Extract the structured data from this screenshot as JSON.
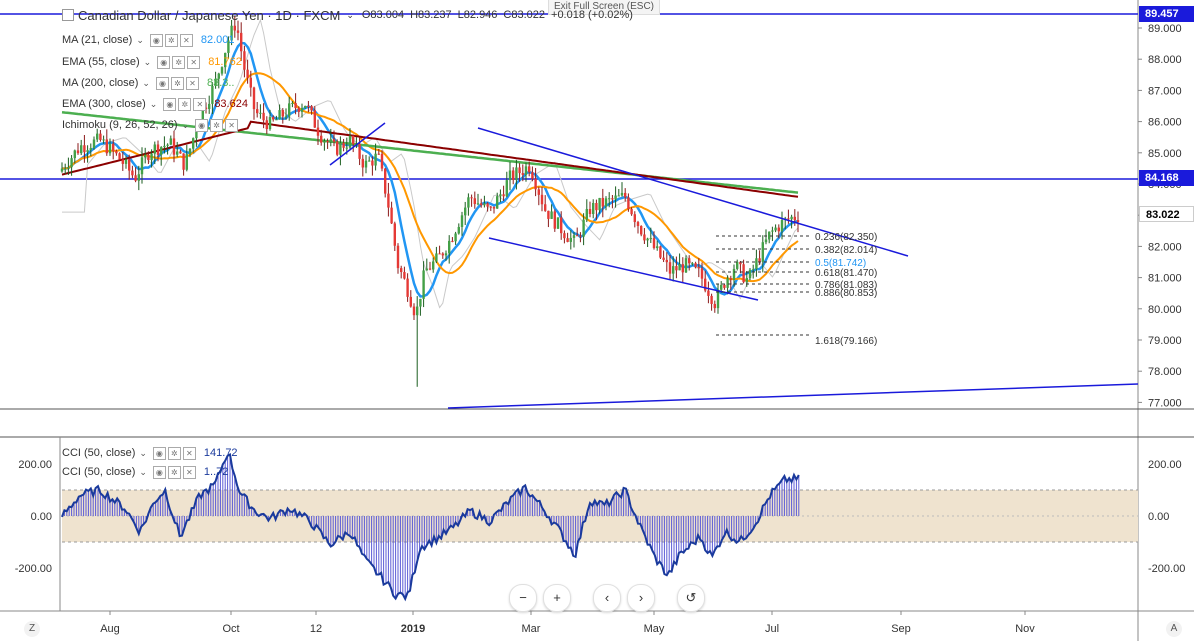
{
  "header": {
    "symbol_title": "Canadian Dollar / Japanese Yen · 1D · FXCM",
    "open": "O83.004",
    "high": "H83.237",
    "low": "L82.946",
    "close": "C83.022",
    "change": "+0.018 (+0.02%)",
    "fullscreen_hint": "Exit Full Screen (ESC)"
  },
  "indicators": [
    {
      "name": "MA (21, close)",
      "value": "82.001",
      "color": "#2196f3"
    },
    {
      "name": "EMA (55, close)",
      "value": "81.762",
      "color": "#ff9800"
    },
    {
      "name": "MA (200, close)",
      "value": "83.3..",
      "color": "#4caf50"
    },
    {
      "name": "EMA (300, close)",
      "value": "83.624",
      "color": "#8b0000"
    },
    {
      "name": "Ichimoku (9, 26, 52, 26)",
      "value": "",
      "color": "#999999"
    }
  ],
  "cci_indicators": [
    {
      "name": "CCI (50, close)",
      "value": "141.72",
      "color": "#1a3a9c"
    },
    {
      "name": "CCI (50, close)",
      "value": "1..72",
      "color": "#1a3a9c"
    }
  ],
  "colors": {
    "up": "#26a69a",
    "down": "#ef5350",
    "upAlt": "#43a047",
    "downAlt": "#e53935",
    "trendline": "#1a1adb",
    "cci_band": "#efe3cf",
    "badge_blue": "#1a1adb"
  },
  "price_axis": {
    "ticks": [
      "89.000",
      "88.000",
      "87.000",
      "86.000",
      "85.000",
      "84.000",
      "83.000",
      "82.000",
      "81.000",
      "80.000",
      "79.000",
      "78.000",
      "77.000"
    ],
    "badges": [
      {
        "label": "89.457",
        "kind": "level"
      },
      {
        "label": "84.168",
        "kind": "level"
      },
      {
        "label": "83.022",
        "kind": "last"
      }
    ]
  },
  "cci_axis": {
    "left_ticks": [
      "200.00",
      "0.00",
      "-200.00"
    ],
    "right_ticks": [
      "200.00",
      "0.00",
      "-200.00"
    ]
  },
  "time_axis": {
    "labels": [
      "Aug",
      "Oct",
      "12",
      "2019",
      "Mar",
      "May",
      "Jul",
      "Sep",
      "Nov"
    ]
  },
  "fibonacci": [
    {
      "label": "0.236(82.350)"
    },
    {
      "label": "0.382(82.014)"
    },
    {
      "label": "0.5(81.742)"
    },
    {
      "label": "0.618(81.470)"
    },
    {
      "label": "0.786(81.083)"
    },
    {
      "label": "0.886(80.853)"
    },
    {
      "label": "1.618(79.166)"
    }
  ],
  "nav": {
    "zoom_out": "−",
    "zoom_in": "+",
    "scroll_left": "‹",
    "scroll_right": "›",
    "reset": "↺"
  },
  "corners": {
    "left_bottom": "Z",
    "right_bottom": "A"
  }
}
